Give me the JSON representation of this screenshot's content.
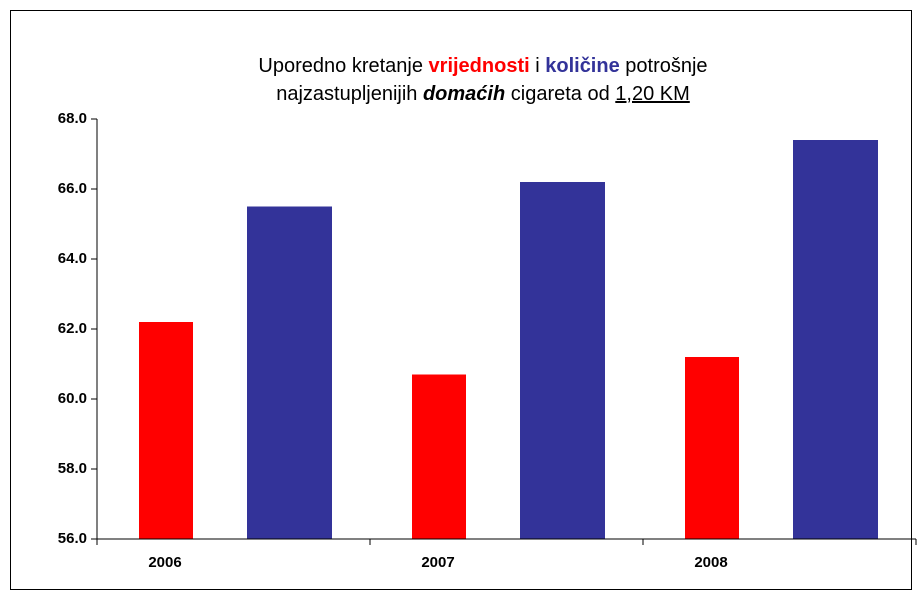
{
  "chart_data": {
    "type": "bar",
    "title": [
      [
        "Uporedno kretanje ",
        "vrijednosti",
        " i ",
        "količine",
        " potrošnje"
      ],
      [
        "najzastupljenijih ",
        "domaćih",
        " cigareta od ",
        "1,20 KM"
      ]
    ],
    "categories": [
      "2006",
      "2007",
      "2008"
    ],
    "series": [
      {
        "color": "#ff0000",
        "values": [
          62.2,
          60.7,
          61.2
        ]
      },
      {
        "color": "#333399",
        "values": [
          65.5,
          66.2,
          67.4
        ]
      }
    ],
    "ylim": [
      56,
      68
    ],
    "yticks": [
      {
        "value": 56,
        "label": "56.0"
      },
      {
        "value": 58,
        "label": "58.0"
      },
      {
        "value": 60,
        "label": "60.0"
      },
      {
        "value": 62,
        "label": "62.0"
      },
      {
        "value": 64,
        "label": "64.0"
      },
      {
        "value": 66,
        "label": "66.0"
      },
      {
        "value": 68,
        "label": "68.0"
      }
    ],
    "grid": false
  }
}
